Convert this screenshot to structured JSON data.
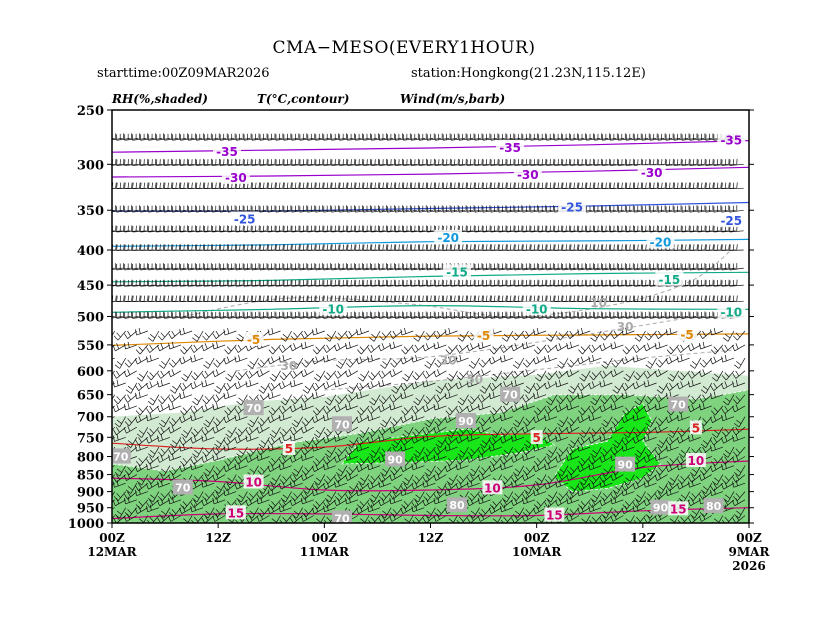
{
  "header": {
    "title": "CMA−MESO(EVERY1HOUR)",
    "starttime": "starttime:00Z09MAR2026",
    "station": "station:Hongkong(21.23N,115.12E)"
  },
  "legend": {
    "rh": "RH(%,shaded)",
    "temp": "T(°C,contour)",
    "wind": "Wind(m/s,barb)"
  },
  "colors": {
    "rh70": "#d2e9d2",
    "rh80": "#7fd37f",
    "rh90": "#19e619",
    "temp_cold": "#9900cc",
    "temp_blue": "#3355dd",
    "temp_cyan": "#1199dd",
    "temp_teal": "#11aa88",
    "temp_orange": "#dd8800",
    "temp_red": "#dd2222",
    "temp_warm": "#cc0077",
    "contour_dash": "#aaaaaa"
  },
  "chart_data": {
    "type": "heatmap",
    "title": "CMA−MESO(EVERY1HOUR)",
    "x_tick_labels": [
      {
        "hours": 0,
        "time": "00Z",
        "date": "12MAR",
        "year": ""
      },
      {
        "hours": 12,
        "time": "12Z",
        "date": "",
        "year": ""
      },
      {
        "hours": 24,
        "time": "00Z",
        "date": "11MAR",
        "year": ""
      },
      {
        "hours": 36,
        "time": "12Z",
        "date": "",
        "year": ""
      },
      {
        "hours": 48,
        "time": "00Z",
        "date": "10MAR",
        "year": ""
      },
      {
        "hours": 60,
        "time": "12Z",
        "date": "",
        "year": ""
      },
      {
        "hours": 72,
        "time": "00Z",
        "date": "9MAR",
        "year": "2026"
      }
    ],
    "x_range_hours": [
      0,
      72
    ],
    "y_axis": {
      "label": "",
      "scale": "log",
      "range_hPa": [
        1000,
        250
      ],
      "ticks": [
        250,
        300,
        350,
        400,
        450,
        500,
        550,
        600,
        650,
        700,
        750,
        800,
        850,
        900,
        950,
        1000
      ]
    },
    "barb_levels_hPa": [
      275,
      300,
      325,
      350,
      375,
      400,
      425,
      450,
      475,
      500,
      525,
      550,
      575,
      600,
      625,
      650,
      675,
      700,
      725,
      750,
      775,
      800,
      825,
      850,
      875,
      900,
      925,
      950,
      975
    ],
    "temperature_contours": [
      {
        "value": -35,
        "color": "#9900cc",
        "points": [
          [
            0,
            288
          ],
          [
            18,
            286
          ],
          [
            36,
            284
          ],
          [
            54,
            281
          ],
          [
            72,
            277
          ]
        ]
      },
      {
        "value": -30,
        "color": "#9900cc",
        "points": [
          [
            0,
            313
          ],
          [
            18,
            312
          ],
          [
            36,
            310
          ],
          [
            54,
            307
          ],
          [
            72,
            303
          ]
        ]
      },
      {
        "value": -25,
        "color": "#3355dd",
        "points": [
          [
            0,
            351
          ],
          [
            18,
            351
          ],
          [
            36,
            348
          ],
          [
            54,
            345
          ],
          [
            72,
            341
          ]
        ]
      },
      {
        "value": -20,
        "color": "#1199dd",
        "points": [
          [
            0,
            395
          ],
          [
            18,
            393
          ],
          [
            36,
            389
          ],
          [
            54,
            388
          ],
          [
            72,
            386
          ]
        ]
      },
      {
        "value": -15,
        "color": "#11aa88",
        "points": [
          [
            0,
            445
          ],
          [
            18,
            443
          ],
          [
            36,
            437
          ],
          [
            54,
            433
          ],
          [
            72,
            431
          ]
        ]
      },
      {
        "value": -10,
        "color": "#11aa88",
        "points": [
          [
            0,
            493
          ],
          [
            18,
            488
          ],
          [
            36,
            482
          ],
          [
            54,
            487
          ],
          [
            72,
            488
          ]
        ]
      },
      {
        "value": -5,
        "color": "#dd8800",
        "points": [
          [
            0,
            551
          ],
          [
            18,
            540
          ],
          [
            36,
            534
          ],
          [
            54,
            532
          ],
          [
            72,
            530
          ]
        ]
      },
      {
        "value": 5,
        "color": "#dd2222",
        "points": [
          [
            0,
            765
          ],
          [
            12,
            780
          ],
          [
            24,
            775
          ],
          [
            36,
            748
          ],
          [
            48,
            741
          ],
          [
            60,
            738
          ],
          [
            72,
            730
          ]
        ]
      },
      {
        "value": 10,
        "color": "#cc0077",
        "points": [
          [
            0,
            860
          ],
          [
            12,
            870
          ],
          [
            24,
            895
          ],
          [
            36,
            895
          ],
          [
            48,
            880
          ],
          [
            60,
            830
          ],
          [
            72,
            812
          ]
        ]
      },
      {
        "value": 15,
        "color": "#cc0077",
        "points": [
          [
            0,
            985
          ],
          [
            12,
            970
          ],
          [
            24,
            970
          ],
          [
            36,
            975
          ],
          [
            48,
            975
          ],
          [
            60,
            960
          ],
          [
            72,
            950
          ]
        ]
      }
    ],
    "temperature_labels": [
      {
        "value": -35,
        "hours": 13,
        "hPa": 288,
        "color": "#9900cc"
      },
      {
        "value": -35,
        "hours": 45,
        "hPa": 284,
        "color": "#9900cc"
      },
      {
        "value": -35,
        "hours": 70,
        "hPa": 277,
        "color": "#9900cc"
      },
      {
        "value": -30,
        "hours": 14,
        "hPa": 314,
        "color": "#9900cc"
      },
      {
        "value": -30,
        "hours": 47,
        "hPa": 311,
        "color": "#9900cc"
      },
      {
        "value": -30,
        "hours": 61,
        "hPa": 309,
        "color": "#9900cc"
      },
      {
        "value": -25,
        "hours": 15,
        "hPa": 361,
        "color": "#3355dd"
      },
      {
        "value": -25,
        "hours": 52,
        "hPa": 347,
        "color": "#3355dd"
      },
      {
        "value": -25,
        "hours": 70,
        "hPa": 363,
        "color": "#3355dd"
      },
      {
        "value": -20,
        "hours": 38,
        "hPa": 384,
        "color": "#1199dd"
      },
      {
        "value": -20,
        "hours": 62,
        "hPa": 390,
        "color": "#1199dd"
      },
      {
        "value": -15,
        "hours": 39,
        "hPa": 431,
        "color": "#11aa88"
      },
      {
        "value": -15,
        "hours": 63,
        "hPa": 442,
        "color": "#11aa88"
      },
      {
        "value": -10,
        "hours": 25,
        "hPa": 488,
        "color": "#11aa88"
      },
      {
        "value": -10,
        "hours": 48,
        "hPa": 488,
        "color": "#11aa88"
      },
      {
        "value": -10,
        "hours": 70,
        "hPa": 493,
        "color": "#11aa88"
      },
      {
        "value": -5,
        "hours": 16,
        "hPa": 541,
        "color": "#dd8800"
      },
      {
        "value": -5,
        "hours": 42,
        "hPa": 534,
        "color": "#dd8800"
      },
      {
        "value": -5,
        "hours": 65,
        "hPa": 532,
        "color": "#dd8800"
      },
      {
        "value": 5,
        "hours": 20,
        "hPa": 780,
        "color": "#dd2222"
      },
      {
        "value": 5,
        "hours": 48,
        "hPa": 752,
        "color": "#dd2222"
      },
      {
        "value": 5,
        "hours": 66,
        "hPa": 728,
        "color": "#dd2222"
      },
      {
        "value": 10,
        "hours": 16,
        "hPa": 873,
        "color": "#cc0077"
      },
      {
        "value": 10,
        "hours": 43,
        "hPa": 890,
        "color": "#cc0077"
      },
      {
        "value": 10,
        "hours": 66,
        "hPa": 812,
        "color": "#cc0077"
      },
      {
        "value": 15,
        "hours": 14,
        "hPa": 968,
        "color": "#cc0077"
      },
      {
        "value": 15,
        "hours": 50,
        "hPa": 975,
        "color": "#cc0077"
      },
      {
        "value": 15,
        "hours": 64,
        "hPa": 955,
        "color": "#cc0077"
      }
    ],
    "rh_shading": [
      {
        "level": 70,
        "color": "#d2e9d2",
        "points": [
          [
            0,
            1000
          ],
          [
            0,
            700
          ],
          [
            8,
            690
          ],
          [
            16,
            665
          ],
          [
            24,
            655
          ],
          [
            36,
            620
          ],
          [
            48,
            608
          ],
          [
            56,
            590
          ],
          [
            64,
            600
          ],
          [
            72,
            610
          ],
          [
            72,
            1000
          ]
        ]
      },
      {
        "level": 80,
        "color": "#7fd37f",
        "points": [
          [
            0,
            1000
          ],
          [
            0,
            820
          ],
          [
            6,
            840
          ],
          [
            12,
            810
          ],
          [
            20,
            765
          ],
          [
            28,
            740
          ],
          [
            36,
            705
          ],
          [
            44,
            690
          ],
          [
            50,
            650
          ],
          [
            58,
            650
          ],
          [
            66,
            660
          ],
          [
            72,
            640
          ],
          [
            72,
            1000
          ]
        ]
      },
      {
        "level": 90,
        "color": "#19e619",
        "points": [
          [
            26,
            820
          ],
          [
            28,
            762
          ],
          [
            34,
            745
          ],
          [
            40,
            730
          ],
          [
            44,
            745
          ],
          [
            48,
            740
          ],
          [
            50,
            770
          ],
          [
            46,
            790
          ],
          [
            40,
            810
          ],
          [
            34,
            815
          ]
        ]
      },
      {
        "level": 90,
        "color": "#19e619",
        "points": [
          [
            52,
            900
          ],
          [
            50,
            855
          ],
          [
            52,
            780
          ],
          [
            56,
            760
          ],
          [
            58,
            690
          ],
          [
            60,
            670
          ],
          [
            61,
            710
          ],
          [
            60,
            760
          ],
          [
            62,
            820
          ],
          [
            60,
            860
          ],
          [
            56,
            890
          ]
        ]
      }
    ],
    "rh_labels": [
      {
        "value": 70,
        "hours": 1,
        "hPa": 800
      },
      {
        "value": 70,
        "hours": 8,
        "hPa": 888
      },
      {
        "value": 70,
        "hours": 16,
        "hPa": 680
      },
      {
        "value": 70,
        "hours": 26,
        "hPa": 718
      },
      {
        "value": 70,
        "hours": 26,
        "hPa": 985
      },
      {
        "value": 70,
        "hours": 45,
        "hPa": 650
      },
      {
        "value": 70,
        "hours": 64,
        "hPa": 672
      },
      {
        "value": 80,
        "hours": 39,
        "hPa": 942
      },
      {
        "value": 80,
        "hours": 68,
        "hPa": 945
      },
      {
        "value": 90,
        "hours": 32,
        "hPa": 808
      },
      {
        "value": 90,
        "hours": 40,
        "hPa": 710
      },
      {
        "value": 90,
        "hours": 58,
        "hPa": 822
      },
      {
        "value": 90,
        "hours": 62,
        "hPa": 950
      }
    ],
    "dashed_contour_labels": [
      {
        "value": 10,
        "hours": 55,
        "hPa": 478
      },
      {
        "value": 30,
        "hours": 38,
        "hPa": 580
      },
      {
        "value": 30,
        "hours": 20,
        "hPa": 590
      },
      {
        "value": 30,
        "hours": 58,
        "hPa": 518
      },
      {
        "value": 50,
        "hours": 41,
        "hPa": 618
      }
    ]
  }
}
